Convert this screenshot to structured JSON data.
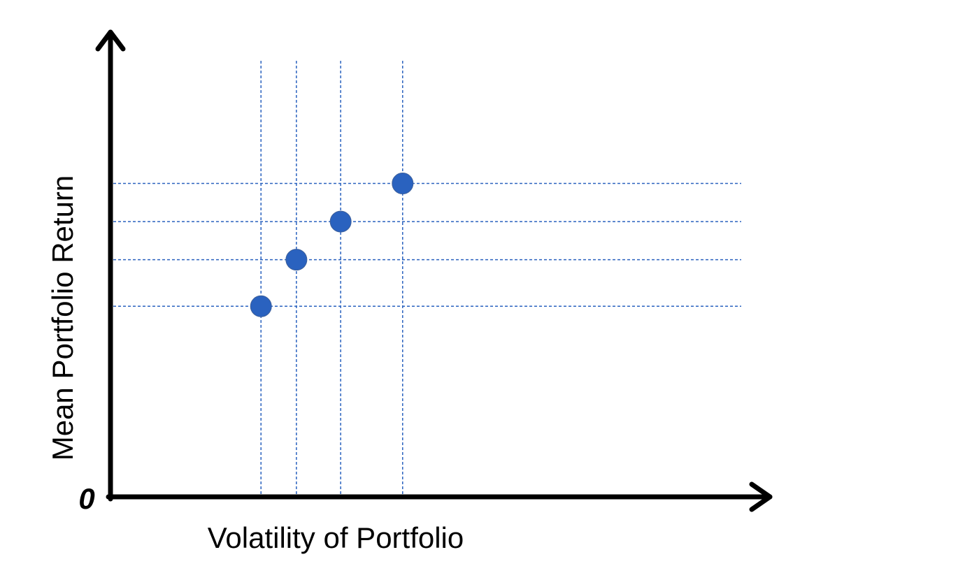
{
  "chart_data": {
    "type": "scatter",
    "title": "",
    "xlabel": "Volatility of Portfolio",
    "ylabel": "Mean Portfolio Return",
    "origin_label": "0",
    "xlim": [
      0,
      10
    ],
    "ylim": [
      0,
      10
    ],
    "grid": false,
    "guide_lines": true,
    "series": [
      {
        "points": [
          {
            "x": 3.4,
            "y": 4.5
          },
          {
            "x": 4.2,
            "y": 5.6
          },
          {
            "x": 5.2,
            "y": 6.5
          },
          {
            "x": 6.6,
            "y": 7.4
          }
        ]
      }
    ],
    "colors": {
      "point": "#2a62bf",
      "guide": "#2a62bf",
      "axis": "#000000"
    }
  }
}
